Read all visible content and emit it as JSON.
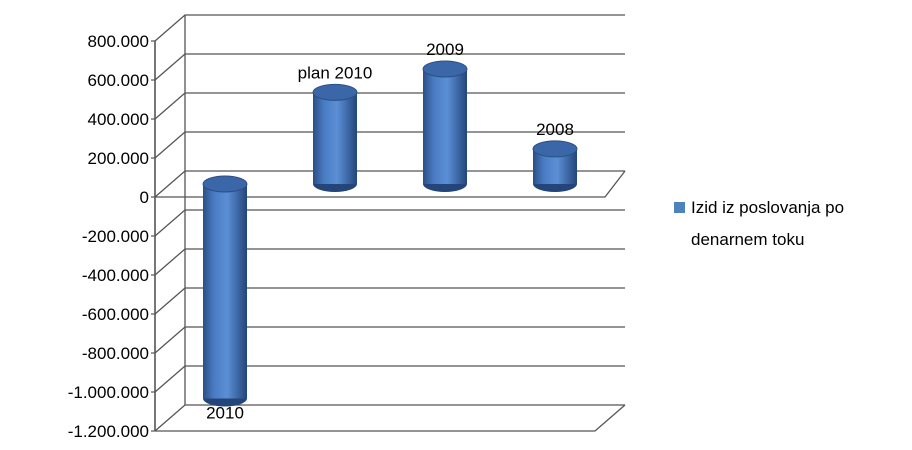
{
  "chart_data": {
    "type": "bar",
    "style": "3d-cylinder",
    "categories": [
      "2010",
      "plan 2010",
      "2009",
      "2008"
    ],
    "series": [
      {
        "name": "Izid iz poslovanja po denarnem toku",
        "values": [
          -1100000,
          470000,
          590000,
          180000
        ],
        "color": "#4f81bd"
      }
    ],
    "ylim": [
      -1200000,
      800000
    ],
    "yticks": [
      800000,
      600000,
      400000,
      200000,
      0,
      -200000,
      -400000,
      -600000,
      -800000,
      -1000000,
      -1200000
    ],
    "ytick_labels": [
      "800.000",
      "600.000",
      "400.000",
      "200.000",
      "0",
      "-200.000",
      "-400.000",
      "-600.000",
      "-800.000",
      "-1.000.000",
      "-1.200.000"
    ],
    "grid": true,
    "legend_position": "right",
    "legend_lines": [
      "Izid iz poslovanja po",
      "denarnem toku"
    ],
    "title": "",
    "xlabel": "",
    "ylabel": ""
  }
}
